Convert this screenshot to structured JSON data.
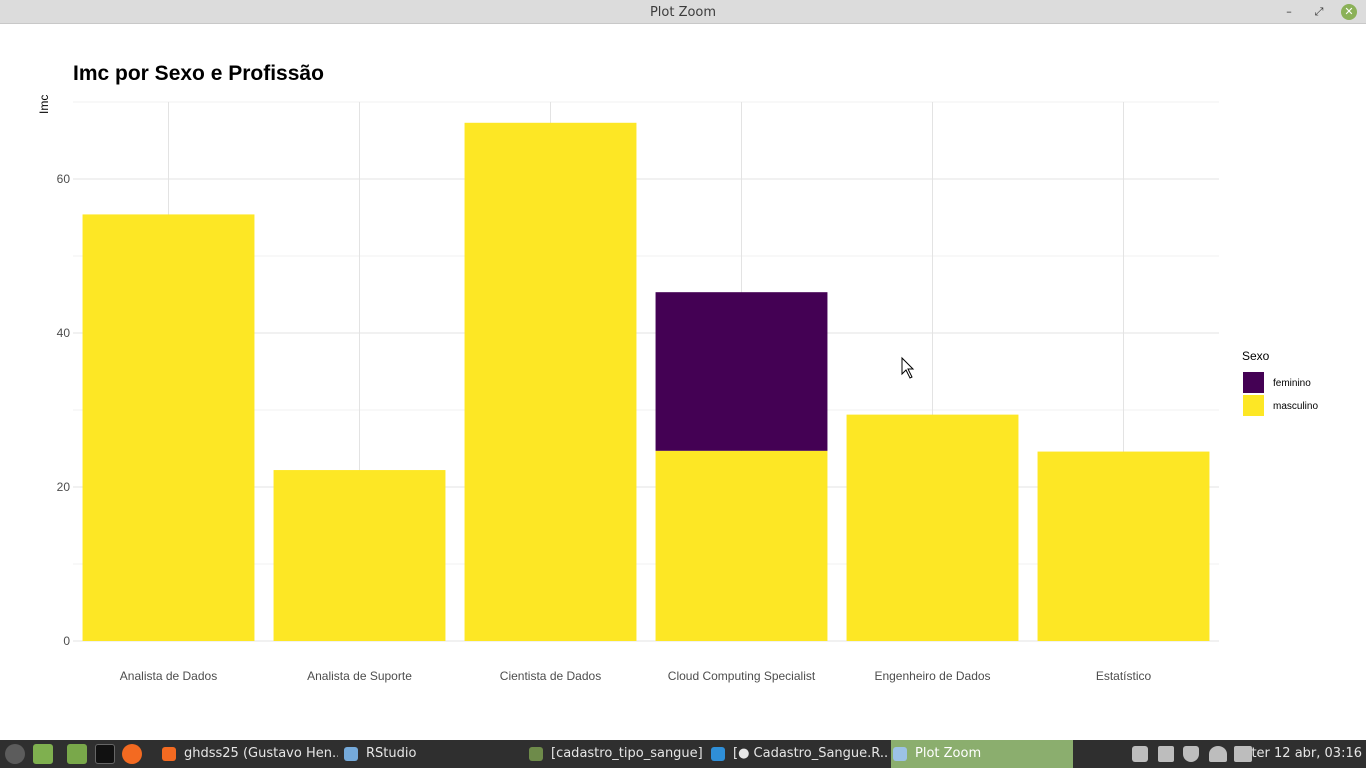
{
  "window": {
    "title": "Plot Zoom"
  },
  "chart_data": {
    "type": "bar",
    "title": "Imc por Sexo e Profissão",
    "xlabel": "",
    "ylabel": "Imc",
    "ylim": [
      0,
      70
    ],
    "yticks": [
      0,
      20,
      40,
      60
    ],
    "categories": [
      "Analista de Dados",
      "Analista de Suporte",
      "Cientista de Dados",
      "Cloud Computing Specialist",
      "Engenheiro de Dados",
      "Estatístico"
    ],
    "stacked": true,
    "series": [
      {
        "name": "masculino",
        "color": "#fde725",
        "values": [
          55.4,
          22.2,
          67.3,
          24.7,
          29.4,
          24.6
        ]
      },
      {
        "name": "feminino",
        "color": "#440154",
        "values": [
          0,
          0,
          0,
          20.6,
          0,
          0
        ]
      }
    ],
    "legend": {
      "title": "Sexo",
      "position": "right",
      "entries": [
        {
          "label": "feminino",
          "color": "#440154"
        },
        {
          "label": "masculino",
          "color": "#fde725"
        }
      ]
    },
    "grid": true
  },
  "taskbar": {
    "items": [
      {
        "label": "ghdss25 (Gustavo Hen...",
        "icon": "firefox-icon",
        "color": "#f36a21"
      },
      {
        "label": "RStudio",
        "icon": "rstudio-icon",
        "color": "#75aadb"
      },
      {
        "label": "[cadastro_tipo_sangue]",
        "icon": "folder-icon",
        "color": "#6e8b4a"
      },
      {
        "label": "[● Cadastro_Sangue.R...",
        "icon": "vscode-icon",
        "color": "#2f8fd8"
      },
      {
        "label": "Plot Zoom",
        "icon": "window-icon",
        "color": "#9cc2e6"
      }
    ],
    "clock": "ter 12 abr, 03:16"
  }
}
